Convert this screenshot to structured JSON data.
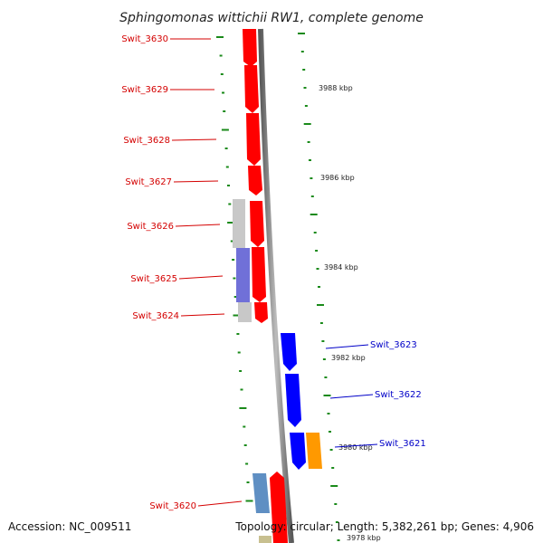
{
  "title": "Sphingomonas wittichii RW1, complete genome",
  "accession": "Accession: NC_009511",
  "summary": "Topology: circular; Length: 5,382,261 bp; Genes: 4,906",
  "colors": {
    "backbone": "#8a8a8a",
    "tick": "#1a8a1a",
    "left_label": "#d40000",
    "right_label": "#0000c8",
    "gene_red": "#ff0000",
    "gene_blue": "#0000ff",
    "gene_orange": "#ff9900",
    "gene_steelblue": "#5f8fc3",
    "gene_khaki": "#c8c090",
    "feature_gray": "#c8c8c8",
    "feature_purple": "#7070d8"
  },
  "scale_labels": [
    {
      "text": "3988 kbp"
    },
    {
      "text": "3986 kbp"
    },
    {
      "text": "3984 kbp"
    },
    {
      "text": "3982 kbp"
    },
    {
      "text": "3980 kbp"
    },
    {
      "text": "3978 kbp"
    }
  ],
  "left_labels": [
    {
      "text": "Swit_3630"
    },
    {
      "text": "Swit_3629"
    },
    {
      "text": "Swit_3628"
    },
    {
      "text": "Swit_3627"
    },
    {
      "text": "Swit_3626"
    },
    {
      "text": "Swit_3625"
    },
    {
      "text": "Swit_3624"
    },
    {
      "text": "Swit_3620"
    }
  ],
  "right_labels": [
    {
      "text": "Swit_3623"
    },
    {
      "text": "Swit_3622"
    },
    {
      "text": "Swit_3621"
    }
  ]
}
